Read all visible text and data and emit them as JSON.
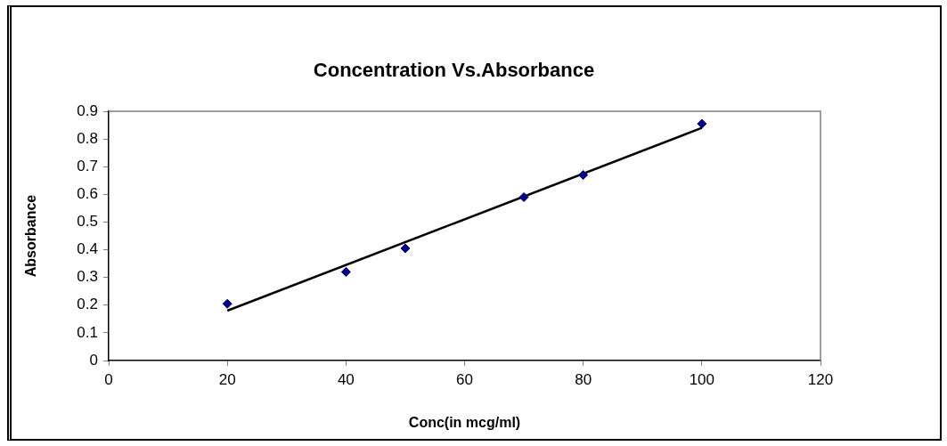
{
  "chart_data": {
    "type": "scatter",
    "title": "Concentration Vs.Absorbance",
    "xlabel": "Conc(in mcg/ml)",
    "ylabel": "Absorbance",
    "xlim": [
      0,
      120
    ],
    "xticks": [
      0,
      20,
      40,
      60,
      80,
      100,
      120
    ],
    "ylim": [
      0,
      0.9
    ],
    "yticks": [
      0,
      0.1,
      0.2,
      0.3,
      0.4,
      0.5,
      0.6,
      0.7,
      0.8,
      0.9
    ],
    "grid": false,
    "legend": false,
    "marker": "diamond",
    "series": [
      {
        "type": "scatter",
        "color": "#000080",
        "x": [
          20,
          40,
          50,
          70,
          80,
          100
        ],
        "values": [
          0.205,
          0.32,
          0.405,
          0.59,
          0.67,
          0.855
        ]
      },
      {
        "type": "line",
        "color": "#000000",
        "marker": "none",
        "line_style": "solid",
        "x": [
          20,
          100
        ],
        "values": [
          0.18,
          0.84
        ]
      }
    ]
  }
}
